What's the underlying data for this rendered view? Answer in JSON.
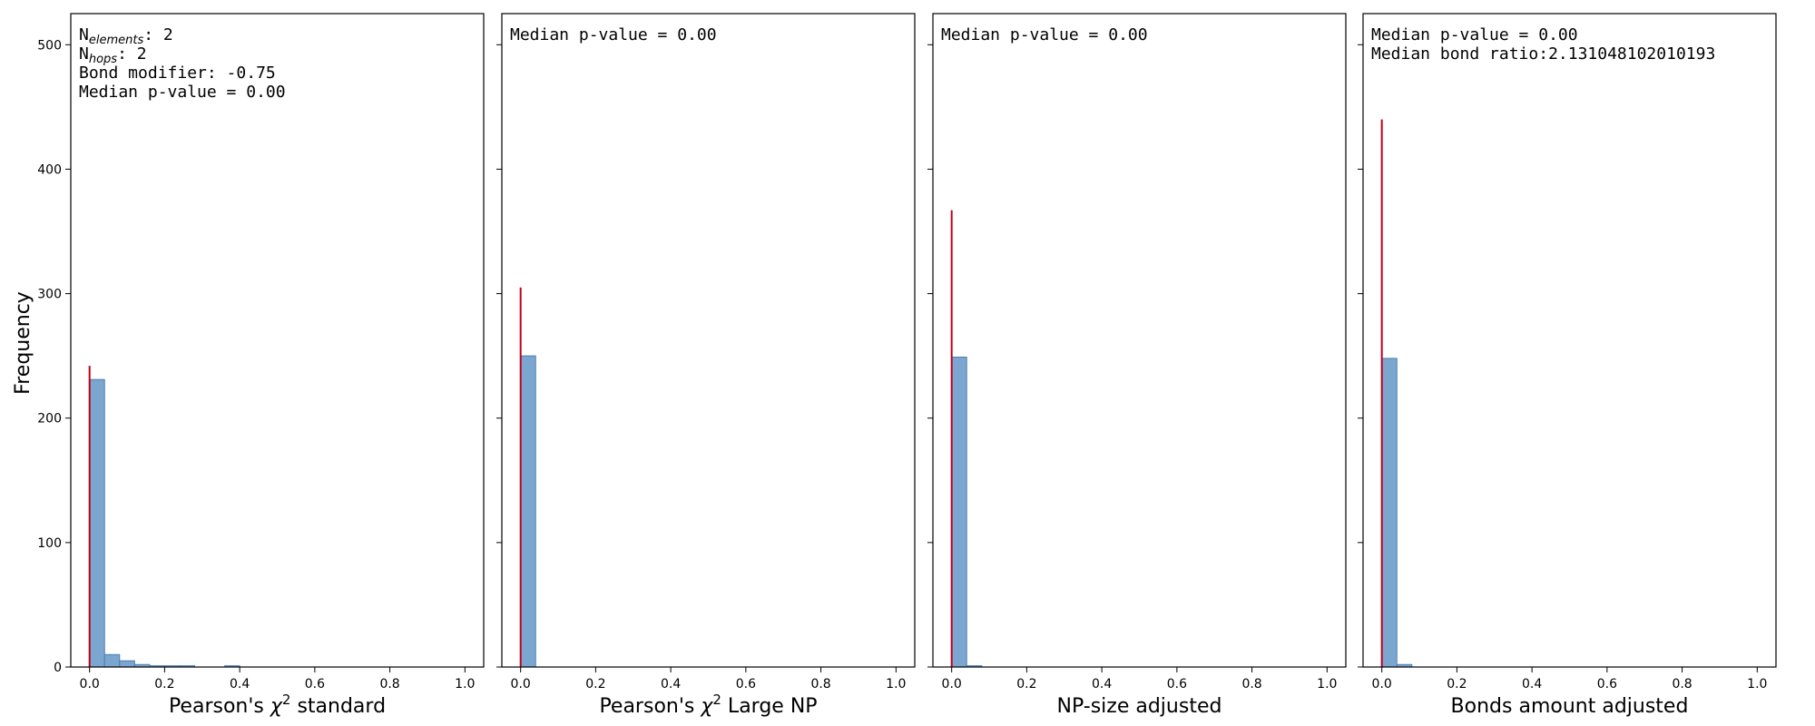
{
  "figure": {
    "ylabel": "Frequency",
    "ylim": [
      0,
      525
    ],
    "yticks": [
      0,
      100,
      200,
      300,
      400,
      500
    ],
    "xlim": [
      -0.05,
      1.05
    ],
    "xticks": [
      "0.0",
      "0.2",
      "0.4",
      "0.6",
      "0.8",
      "1.0"
    ],
    "bar_color": "#7ba6cf",
    "bar_edge_color": "#4a7fb0",
    "median_line_color": "#c0001a"
  },
  "chart_data": [
    {
      "type": "bar",
      "xlabel": "Pearson's χ² standard",
      "xlabel_parts": {
        "pre": "Pearson's ",
        "sym": "χ",
        "sup": "2",
        "post": " standard"
      },
      "bin_width": 0.04,
      "bins": [
        {
          "x": 0.0,
          "count": 231
        },
        {
          "x": 0.04,
          "count": 10
        },
        {
          "x": 0.08,
          "count": 5
        },
        {
          "x": 0.12,
          "count": 2
        },
        {
          "x": 0.16,
          "count": 1
        },
        {
          "x": 0.2,
          "count": 1
        },
        {
          "x": 0.24,
          "count": 1
        },
        {
          "x": 0.36,
          "count": 1
        }
      ],
      "median_line": {
        "x": 0.0,
        "height": 242
      },
      "annotations": [
        {
          "base": "N",
          "sub": "elements",
          "rest": ": 2"
        },
        {
          "base": "N",
          "sub": "hops",
          "rest": ": 2"
        },
        {
          "base": "Bond modifier: -0.75",
          "sub": "",
          "rest": ""
        },
        {
          "base": "Median p-value = 0.00",
          "sub": "",
          "rest": ""
        }
      ]
    },
    {
      "type": "bar",
      "xlabel": "Pearson's χ² Large NP",
      "xlabel_parts": {
        "pre": "Pearson's ",
        "sym": "χ",
        "sup": "2",
        "post": " Large NP"
      },
      "bin_width": 0.04,
      "bins": [
        {
          "x": 0.0,
          "count": 250
        }
      ],
      "median_line": {
        "x": 0.0,
        "height": 305
      },
      "annotations": [
        {
          "base": "Median p-value = 0.00",
          "sub": "",
          "rest": ""
        }
      ]
    },
    {
      "type": "bar",
      "xlabel": "NP-size adjusted",
      "xlabel_parts": {
        "pre": "NP-size adjusted",
        "sym": "",
        "sup": "",
        "post": ""
      },
      "bin_width": 0.04,
      "bins": [
        {
          "x": 0.0,
          "count": 249
        },
        {
          "x": 0.04,
          "count": 1
        }
      ],
      "median_line": {
        "x": 0.0,
        "height": 367
      },
      "annotations": [
        {
          "base": "Median p-value = 0.00",
          "sub": "",
          "rest": ""
        }
      ]
    },
    {
      "type": "bar",
      "xlabel": "Bonds amount adjusted",
      "xlabel_parts": {
        "pre": "Bonds amount adjusted",
        "sym": "",
        "sup": "",
        "post": ""
      },
      "bin_width": 0.04,
      "bins": [
        {
          "x": 0.0,
          "count": 248
        },
        {
          "x": 0.04,
          "count": 2
        }
      ],
      "median_line": {
        "x": 0.0,
        "height": 440
      },
      "annotations": [
        {
          "base": "Median p-value = 0.00",
          "sub": "",
          "rest": ""
        },
        {
          "base": "Median bond ratio:2.131048102010193",
          "sub": "",
          "rest": ""
        }
      ]
    }
  ]
}
